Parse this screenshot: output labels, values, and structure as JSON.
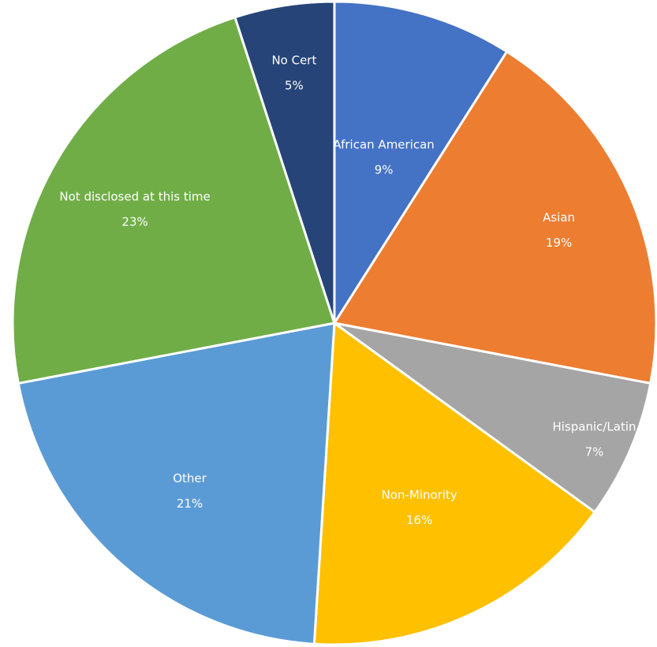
{
  "chart_data": {
    "type": "pie",
    "title": "",
    "start_angle_deg": 0,
    "direction": "clockwise",
    "slices": [
      {
        "label": "African American",
        "value": 9,
        "display": "9%",
        "color": "#4472C4"
      },
      {
        "label": "Asian",
        "value": 19,
        "display": "19%",
        "color": "#ED7D31"
      },
      {
        "label": "Hispanic/Latin",
        "value": 7,
        "display": "7%",
        "color": "#A5A5A5"
      },
      {
        "label": "Non-Minority",
        "value": 16,
        "display": "16%",
        "color": "#FFC000"
      },
      {
        "label": "Other",
        "value": 21,
        "display": "21%",
        "color": "#5B9BD5"
      },
      {
        "label": "Not disclosed at this time",
        "value": 23,
        "display": "23%",
        "color": "#70AD47"
      },
      {
        "label": "No Cert",
        "value": 5,
        "display": "5%",
        "color": "#264478"
      }
    ]
  }
}
